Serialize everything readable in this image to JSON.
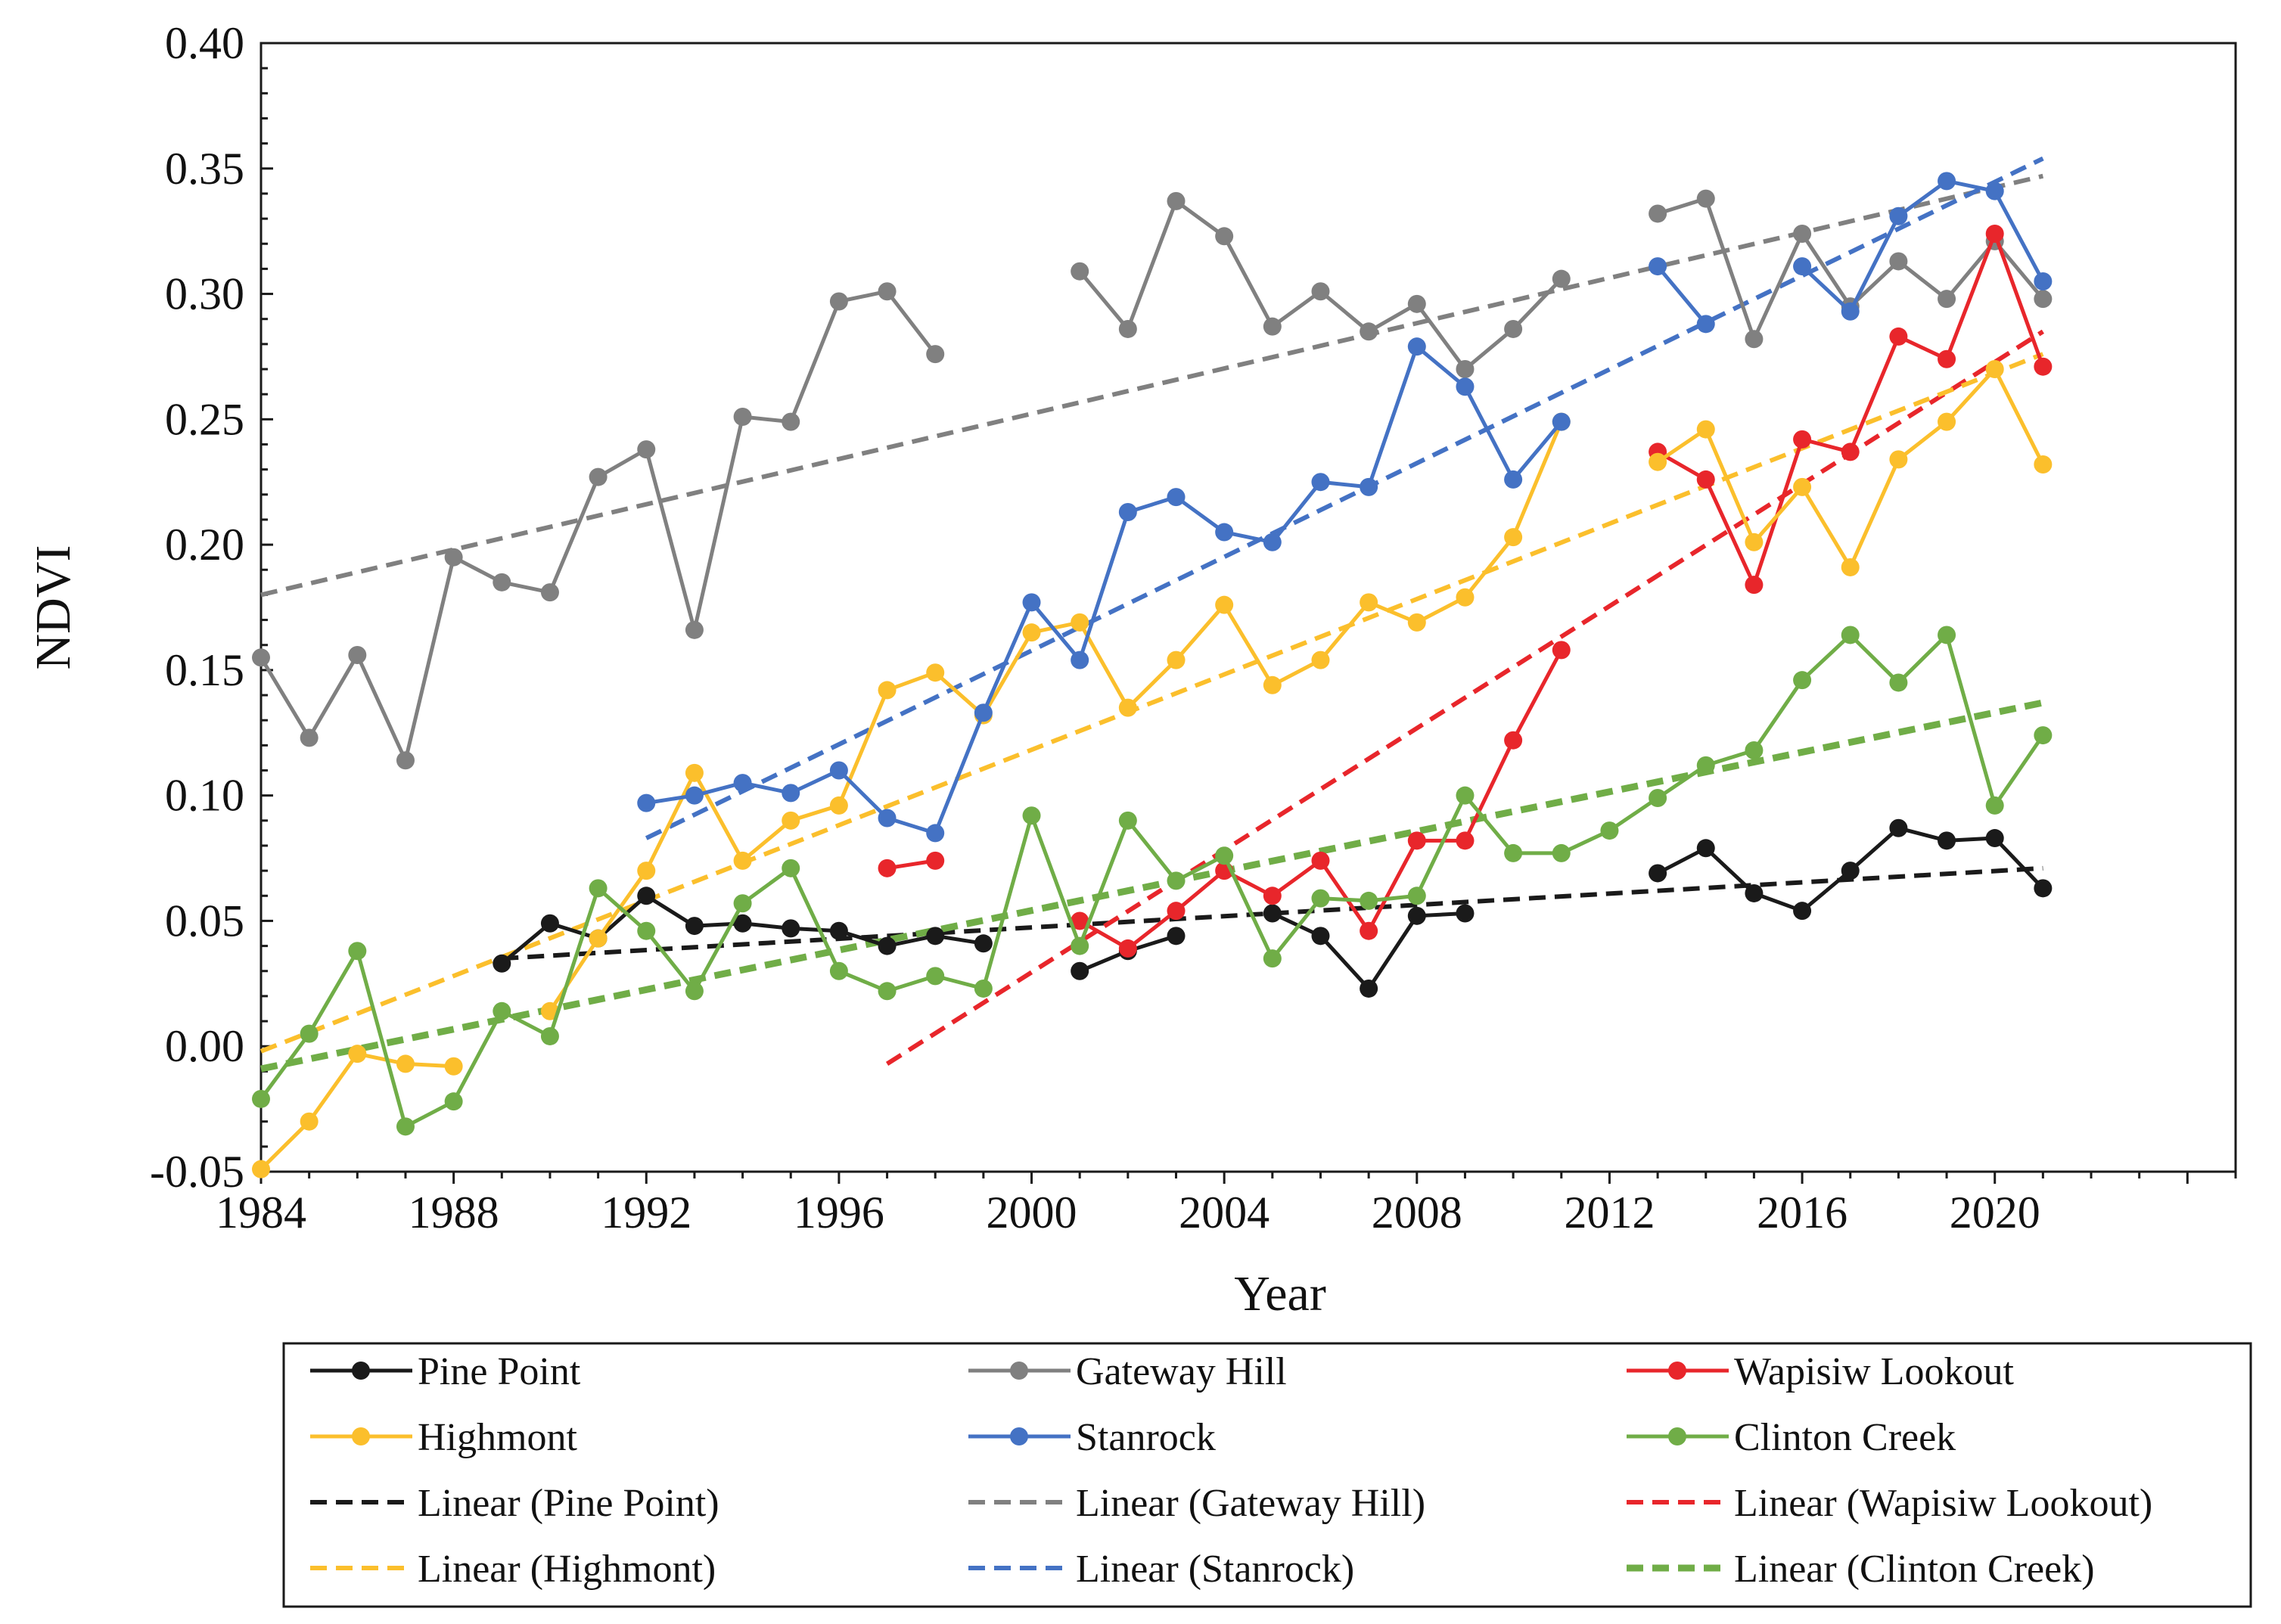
{
  "chart_data": {
    "type": "line",
    "title": "",
    "xlabel": "Year",
    "ylabel": "NDVI",
    "xlim": [
      1984,
      2025
    ],
    "ylim": [
      -0.05,
      0.4
    ],
    "x_ticks": [
      "1984",
      "1988",
      "1992",
      "1996",
      "2000",
      "2004",
      "2008",
      "2012",
      "2016",
      "2020"
    ],
    "y_ticks": [
      "-0.05",
      "0.00",
      "0.05",
      "0.10",
      "0.15",
      "0.20",
      "0.25",
      "0.30",
      "0.35",
      "0.40"
    ],
    "series": [
      {
        "name": "Pine Point",
        "color": "#1a1a1a",
        "points": [
          [
            1989,
            0.033
          ],
          [
            1990,
            0.049
          ],
          [
            1991,
            0.043
          ],
          [
            1992,
            0.06
          ],
          [
            1993,
            0.048
          ],
          [
            1994,
            0.049
          ],
          [
            1995,
            0.047
          ],
          [
            1996,
            0.046
          ],
          [
            1997,
            0.04
          ],
          [
            1998,
            0.044
          ],
          [
            1999,
            0.041
          ],
          [
            null,
            null
          ],
          [
            2001,
            0.03
          ],
          [
            2002,
            0.038
          ],
          [
            2003,
            0.044
          ],
          [
            null,
            null
          ],
          [
            2005,
            0.053
          ],
          [
            2006,
            0.044
          ],
          [
            2007,
            0.023
          ],
          [
            2008,
            0.052
          ],
          [
            2009,
            0.053
          ],
          [
            null,
            null
          ],
          [
            2013,
            0.069
          ],
          [
            2014,
            0.079
          ],
          [
            2015,
            0.061
          ],
          [
            2016,
            0.054
          ],
          [
            2017,
            0.07
          ],
          [
            2018,
            0.087
          ],
          [
            2019,
            0.082
          ],
          [
            2020,
            0.083
          ],
          [
            2021,
            0.063
          ]
        ]
      },
      {
        "name": "Gateway Hill",
        "color": "#808080",
        "points": [
          [
            1984,
            0.155
          ],
          [
            1985,
            0.123
          ],
          [
            1986,
            0.156
          ],
          [
            1987,
            0.114
          ],
          [
            1988,
            0.195
          ],
          [
            1989,
            0.185
          ],
          [
            1990,
            0.181
          ],
          [
            1991,
            0.227
          ],
          [
            1992,
            0.238
          ],
          [
            1993,
            0.166
          ],
          [
            1994,
            0.251
          ],
          [
            1995,
            0.249
          ],
          [
            1996,
            0.297
          ],
          [
            1997,
            0.301
          ],
          [
            1998,
            0.276
          ],
          [
            null,
            null
          ],
          [
            2001,
            0.309
          ],
          [
            2002,
            0.286
          ],
          [
            2003,
            0.337
          ],
          [
            2004,
            0.323
          ],
          [
            2005,
            0.287
          ],
          [
            2006,
            0.301
          ],
          [
            2007,
            0.285
          ],
          [
            2008,
            0.296
          ],
          [
            2009,
            0.27
          ],
          [
            2010,
            0.286
          ],
          [
            2011,
            0.306
          ],
          [
            null,
            null
          ],
          [
            2013,
            0.332
          ],
          [
            2014,
            0.338
          ],
          [
            2015,
            0.282
          ],
          [
            2016,
            0.324
          ],
          [
            2017,
            0.295
          ],
          [
            2018,
            0.313
          ],
          [
            2019,
            0.298
          ],
          [
            2020,
            0.321
          ],
          [
            2021,
            0.298
          ]
        ]
      },
      {
        "name": "Wapisiw Lookout",
        "color": "#e8262b",
        "points": [
          [
            1997,
            0.071
          ],
          [
            1998,
            0.074
          ],
          [
            null,
            null
          ],
          [
            2001,
            0.05
          ],
          [
            2002,
            0.039
          ],
          [
            2003,
            0.054
          ],
          [
            2004,
            0.07
          ],
          [
            2005,
            0.06
          ],
          [
            2006,
            0.074
          ],
          [
            2007,
            0.046
          ],
          [
            2008,
            0.082
          ],
          [
            2009,
            0.082
          ],
          [
            2010,
            0.122
          ],
          [
            2011,
            0.158
          ],
          [
            null,
            null
          ],
          [
            2013,
            0.237
          ],
          [
            2014,
            0.226
          ],
          [
            2015,
            0.184
          ],
          [
            2016,
            0.242
          ],
          [
            2017,
            0.237
          ],
          [
            2018,
            0.283
          ],
          [
            2019,
            0.274
          ],
          [
            2020,
            0.324
          ],
          [
            2021,
            0.271
          ]
        ]
      },
      {
        "name": "Highmont",
        "color": "#fbbf2c",
        "points": [
          [
            1984,
            -0.049
          ],
          [
            1985,
            -0.03
          ],
          [
            1986,
            -0.003
          ],
          [
            1987,
            -0.007
          ],
          [
            1988,
            -0.008
          ],
          [
            null,
            null
          ],
          [
            1990,
            0.014
          ],
          [
            1991,
            0.043
          ],
          [
            1992,
            0.07
          ],
          [
            1993,
            0.109
          ],
          [
            1994,
            0.074
          ],
          [
            1995,
            0.09
          ],
          [
            1996,
            0.096
          ],
          [
            1997,
            0.142
          ],
          [
            1998,
            0.149
          ],
          [
            1999,
            0.132
          ],
          [
            2000,
            0.165
          ],
          [
            2001,
            0.169
          ],
          [
            2002,
            0.135
          ],
          [
            2003,
            0.154
          ],
          [
            2004,
            0.176
          ],
          [
            2005,
            0.144
          ],
          [
            2006,
            0.154
          ],
          [
            2007,
            0.177
          ],
          [
            2008,
            0.169
          ],
          [
            2009,
            0.179
          ],
          [
            2010,
            0.203
          ],
          [
            2011,
            0.249
          ],
          [
            null,
            null
          ],
          [
            2013,
            0.233
          ],
          [
            2014,
            0.246
          ],
          [
            2015,
            0.201
          ],
          [
            2016,
            0.223
          ],
          [
            2017,
            0.191
          ],
          [
            2018,
            0.234
          ],
          [
            2019,
            0.249
          ],
          [
            2020,
            0.27
          ],
          [
            2021,
            0.232
          ]
        ]
      },
      {
        "name": "Stanrock",
        "color": "#4472c4",
        "points": [
          [
            1992,
            0.097
          ],
          [
            1993,
            0.1
          ],
          [
            1994,
            0.105
          ],
          [
            1995,
            0.101
          ],
          [
            1996,
            0.11
          ],
          [
            1997,
            0.091
          ],
          [
            1998,
            0.085
          ],
          [
            1999,
            0.133
          ],
          [
            2000,
            0.177
          ],
          [
            2001,
            0.154
          ],
          [
            2002,
            0.213
          ],
          [
            2003,
            0.219
          ],
          [
            2004,
            0.205
          ],
          [
            2005,
            0.201
          ],
          [
            2006,
            0.225
          ],
          [
            2007,
            0.223
          ],
          [
            2008,
            0.279
          ],
          [
            2009,
            0.263
          ],
          [
            2010,
            0.226
          ],
          [
            2011,
            0.249
          ],
          [
            null,
            null
          ],
          [
            2013,
            0.311
          ],
          [
            2014,
            0.288
          ],
          [
            null,
            null
          ],
          [
            2016,
            0.311
          ],
          [
            2017,
            0.293
          ],
          [
            2018,
            0.331
          ],
          [
            2019,
            0.345
          ],
          [
            2020,
            0.341
          ],
          [
            2021,
            0.305
          ]
        ]
      },
      {
        "name": "Clinton Creek",
        "color": "#70ad47",
        "points": [
          [
            1984,
            -0.021
          ],
          [
            1985,
            0.005
          ],
          [
            1986,
            0.038
          ],
          [
            1987,
            -0.032
          ],
          [
            1988,
            -0.022
          ],
          [
            1989,
            0.014
          ],
          [
            1990,
            0.004
          ],
          [
            1991,
            0.063
          ],
          [
            1992,
            0.046
          ],
          [
            1993,
            0.022
          ],
          [
            1994,
            0.057
          ],
          [
            1995,
            0.071
          ],
          [
            1996,
            0.03
          ],
          [
            1997,
            0.022
          ],
          [
            1998,
            0.028
          ],
          [
            1999,
            0.023
          ],
          [
            2000,
            0.092
          ],
          [
            2001,
            0.04
          ],
          [
            2002,
            0.09
          ],
          [
            2003,
            0.066
          ],
          [
            2004,
            0.076
          ],
          [
            2005,
            0.035
          ],
          [
            2006,
            0.059
          ],
          [
            2007,
            0.058
          ],
          [
            2008,
            0.06
          ],
          [
            2009,
            0.1
          ],
          [
            2010,
            0.077
          ],
          [
            2011,
            0.077
          ],
          [
            2012,
            0.086
          ],
          [
            2013,
            0.099
          ],
          [
            2014,
            0.112
          ],
          [
            2015,
            0.118
          ],
          [
            2016,
            0.146
          ],
          [
            2017,
            0.164
          ],
          [
            2018,
            0.145
          ],
          [
            2019,
            0.164
          ],
          [
            2020,
            0.096
          ],
          [
            2021,
            0.124
          ]
        ]
      }
    ],
    "trendlines": [
      {
        "name": "Linear (Pine Point)",
        "color": "#1a1a1a",
        "width": 6,
        "x": [
          1989,
          2021
        ],
        "y": [
          0.035,
          0.071
        ]
      },
      {
        "name": "Linear (Gateway Hill)",
        "color": "#808080",
        "width": 6,
        "x": [
          1984,
          2021
        ],
        "y": [
          0.18,
          0.347
        ]
      },
      {
        "name": "Linear (Wapisiw Lookout)",
        "color": "#e8262b",
        "width": 6,
        "x": [
          1997,
          2021
        ],
        "y": [
          -0.007,
          0.285
        ]
      },
      {
        "name": "Linear (Highmont)",
        "color": "#fbbf2c",
        "width": 6,
        "x": [
          1984,
          2021
        ],
        "y": [
          -0.002,
          0.276
        ]
      },
      {
        "name": "Linear (Stanrock)",
        "color": "#4472c4",
        "width": 6,
        "x": [
          1992,
          2021
        ],
        "y": [
          0.083,
          0.354
        ]
      },
      {
        "name": "Linear (Clinton Creek)",
        "color": "#70ad47",
        "width": 9,
        "x": [
          1984,
          2021
        ],
        "y": [
          -0.009,
          0.137
        ]
      }
    ]
  }
}
